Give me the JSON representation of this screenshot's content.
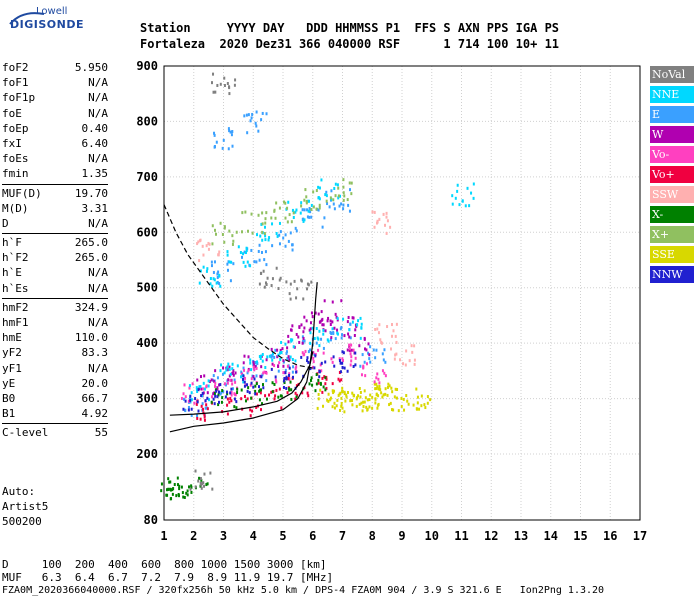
{
  "logo": {
    "top": "Lowell",
    "main": "DIGISONDE"
  },
  "header": {
    "row1": "Station     YYYY DAY   DDD HHMMSS P1  FFS S AXN PPS IGA PS",
    "row2": "Fortaleza  2020 Dez31 366 040000 RSF      1 714 100 10+ 11"
  },
  "params": [
    {
      "label": "foF2",
      "value": "5.950"
    },
    {
      "label": "foF1",
      "value": "N/A"
    },
    {
      "label": "foF1p",
      "value": "N/A"
    },
    {
      "label": "foE",
      "value": "N/A"
    },
    {
      "label": "foEp",
      "value": "0.40"
    },
    {
      "label": "fxI",
      "value": "6.40"
    },
    {
      "label": "foEs",
      "value": "N/A"
    },
    {
      "label": "fmin",
      "value": "1.35"
    },
    {
      "sep": true
    },
    {
      "label": "MUF(D)",
      "value": "19.70"
    },
    {
      "label": "M(D)",
      "value": "3.31"
    },
    {
      "label": "D",
      "value": "N/A"
    },
    {
      "sep": true
    },
    {
      "label": "h`F",
      "value": "265.0"
    },
    {
      "label": "h`F2",
      "value": "265.0"
    },
    {
      "label": "h`E",
      "value": "N/A"
    },
    {
      "label": "h`Es",
      "value": "N/A"
    },
    {
      "sep": true
    },
    {
      "label": "hmF2",
      "value": "324.9"
    },
    {
      "label": "hmF1",
      "value": "N/A"
    },
    {
      "label": "hmE",
      "value": "110.0"
    },
    {
      "label": "yF2",
      "value": "83.3"
    },
    {
      "label": "yF1",
      "value": "N/A"
    },
    {
      "label": "yE",
      "value": "20.0"
    },
    {
      "label": "B0",
      "value": "66.7"
    },
    {
      "label": "B1",
      "value": "4.92"
    },
    {
      "sep": true
    },
    {
      "label": "C-level",
      "value": "55"
    }
  ],
  "auto": {
    "line1": "Auto:",
    "line2": "Artist5",
    "line3": "500200"
  },
  "footer": {
    "d_row": "D     100  200  400  600  800 1000 1500 3000 [km]",
    "muf_row": "MUF   6.3  6.4  6.7  7.2  7.9  8.9 11.9 19.7 [MHz]",
    "file_row": "FZA0M_2020366040000.RSF / 320fx256h 50 kHz 5.0 km / DPS-4 FZA0M 904 / 3.9 S 321.6 E   Ion2Png 1.3.20"
  },
  "legend": [
    {
      "label": "NoVal",
      "color": "#808080"
    },
    {
      "label": "NNE",
      "color": "#00d8ff"
    },
    {
      "label": "E",
      "color": "#3aa0ff"
    },
    {
      "label": "W",
      "color": "#b000b0"
    },
    {
      "label": "Vo-",
      "color": "#ff40c0"
    },
    {
      "label": "Vo+",
      "color": "#f00040"
    },
    {
      "label": "SSW",
      "color": "#ffb0b0"
    },
    {
      "label": "X-",
      "color": "#008000"
    },
    {
      "label": "X+",
      "color": "#90c060"
    },
    {
      "label": "SSE",
      "color": "#d8d800"
    },
    {
      "label": "NNW",
      "color": "#2020d0"
    }
  ],
  "chart_data": {
    "type": "scatter",
    "xlim": [
      1,
      17
    ],
    "ylim": [
      80,
      900
    ],
    "x_ticks": [
      1,
      2,
      3,
      4,
      5,
      6,
      7,
      8,
      9,
      10,
      11,
      12,
      13,
      14,
      15,
      16,
      17
    ],
    "y_ticks": [
      80,
      200,
      300,
      400,
      500,
      600,
      700,
      800,
      900
    ],
    "grid": true,
    "legend_position": "right",
    "series": [
      {
        "name": "SSE",
        "color": "#d8d800",
        "points": [
          [
            6.5,
            300
          ],
          [
            7.0,
            305
          ],
          [
            7.5,
            302
          ],
          [
            8.0,
            300
          ],
          [
            8.5,
            305
          ],
          [
            9.0,
            298
          ],
          [
            9.5,
            303
          ],
          [
            7.2,
            295
          ],
          [
            8.2,
            310
          ]
        ]
      },
      {
        "name": "E",
        "color": "#3aa0ff",
        "points": [
          [
            2.0,
            290
          ],
          [
            3.0,
            330
          ],
          [
            4.0,
            350
          ],
          [
            5.0,
            370
          ],
          [
            6.0,
            400
          ],
          [
            7.0,
            420
          ],
          [
            8.0,
            380
          ],
          [
            3.0,
            530
          ],
          [
            4.0,
            560
          ],
          [
            5.0,
            590
          ],
          [
            6.0,
            630
          ],
          [
            6.8,
            660
          ],
          [
            3.0,
            770
          ],
          [
            4.0,
            800
          ]
        ]
      },
      {
        "name": "W",
        "color": "#b000b0",
        "points": [
          [
            2.5,
            330
          ],
          [
            3.0,
            345
          ],
          [
            4.0,
            360
          ],
          [
            5.0,
            380
          ],
          [
            5.5,
            420
          ],
          [
            6.0,
            440
          ],
          [
            6.5,
            460
          ],
          [
            7.0,
            430
          ],
          [
            7.5,
            400
          ]
        ]
      },
      {
        "name": "Vo-",
        "color": "#ff40c0",
        "points": [
          [
            2.0,
            310
          ],
          [
            3.0,
            320
          ],
          [
            4.0,
            340
          ],
          [
            5.0,
            350
          ],
          [
            6.0,
            370
          ],
          [
            7.0,
            380
          ],
          [
            8.0,
            350
          ]
        ]
      },
      {
        "name": "Vo+",
        "color": "#f00040",
        "points": [
          [
            2.5,
            280
          ],
          [
            3.5,
            290
          ],
          [
            4.5,
            300
          ],
          [
            5.5,
            320
          ],
          [
            6.5,
            330
          ]
        ]
      },
      {
        "name": "NNE",
        "color": "#00d8ff",
        "points": [
          [
            2.2,
            320
          ],
          [
            3.2,
            350
          ],
          [
            4.2,
            370
          ],
          [
            5.2,
            390
          ],
          [
            6.2,
            410
          ],
          [
            7.2,
            430
          ],
          [
            2.5,
            520
          ],
          [
            3.5,
            560
          ],
          [
            4.5,
            600
          ],
          [
            5.5,
            640
          ],
          [
            6.5,
            680
          ],
          [
            11.0,
            670
          ]
        ]
      },
      {
        "name": "SSW",
        "color": "#ffb0b0",
        "points": [
          [
            8.5,
            420
          ],
          [
            9.0,
            380
          ],
          [
            8.3,
            620
          ],
          [
            2.5,
            570
          ]
        ]
      },
      {
        "name": "X-",
        "color": "#008000",
        "points": [
          [
            1.2,
            140
          ],
          [
            1.5,
            138
          ],
          [
            2.0,
            140
          ],
          [
            3.0,
            300
          ],
          [
            4.0,
            310
          ],
          [
            5.0,
            320
          ],
          [
            6.0,
            330
          ]
        ]
      },
      {
        "name": "X+",
        "color": "#90c060",
        "points": [
          [
            3.0,
            600
          ],
          [
            4.0,
            620
          ],
          [
            5.0,
            640
          ],
          [
            6.0,
            660
          ],
          [
            7.0,
            680
          ]
        ]
      },
      {
        "name": "NNW",
        "color": "#2020d0",
        "points": [
          [
            2.0,
            300
          ],
          [
            3.0,
            310
          ],
          [
            4.0,
            330
          ],
          [
            5.0,
            340
          ],
          [
            6.0,
            360
          ],
          [
            7.0,
            370
          ]
        ]
      },
      {
        "name": "NoVal",
        "color": "#808080",
        "points": [
          [
            4.5,
            520
          ],
          [
            5.5,
            500
          ],
          [
            2.2,
            155
          ],
          [
            3.0,
            870
          ]
        ]
      }
    ],
    "curves": [
      {
        "style": "solid",
        "points": [
          [
            1.2,
            240
          ],
          [
            2.0,
            250
          ],
          [
            3.0,
            256
          ],
          [
            4.0,
            265
          ],
          [
            5.0,
            280
          ],
          [
            5.5,
            300
          ],
          [
            5.8,
            330
          ],
          [
            5.9,
            360
          ],
          [
            6.0,
            400
          ],
          [
            6.1,
            480
          ],
          [
            6.15,
            510
          ]
        ]
      },
      {
        "style": "solid",
        "points": [
          [
            1.2,
            270
          ],
          [
            2.0,
            272
          ],
          [
            3.0,
            276
          ],
          [
            4.0,
            285
          ],
          [
            4.8,
            295
          ],
          [
            5.3,
            310
          ],
          [
            5.6,
            330
          ],
          [
            5.9,
            360
          ],
          [
            6.0,
            385
          ]
        ]
      },
      {
        "style": "dashed",
        "points": [
          [
            1.0,
            650
          ],
          [
            1.4,
            600
          ],
          [
            1.8,
            560
          ],
          [
            2.2,
            530
          ],
          [
            2.6,
            500
          ],
          [
            3.0,
            470
          ],
          [
            3.5,
            440
          ],
          [
            4.0,
            410
          ],
          [
            4.5,
            390
          ],
          [
            5.0,
            372
          ],
          [
            5.5,
            360
          ],
          [
            6.0,
            355
          ]
        ]
      }
    ]
  }
}
